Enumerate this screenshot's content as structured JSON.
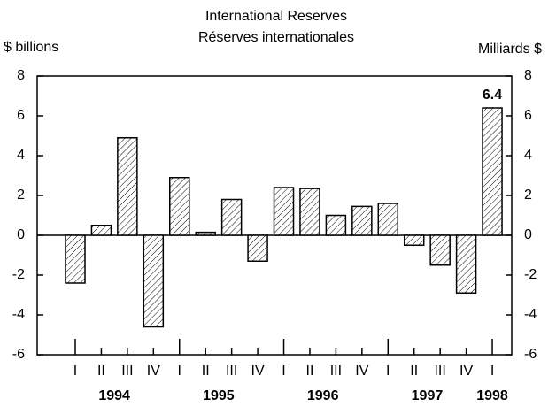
{
  "chart_data": {
    "type": "bar",
    "title": "International Reserves",
    "subtitle": "Réserves internationales",
    "y_label": "$ billions",
    "y2_label": "Milliards $",
    "categories": [
      "I",
      "II",
      "III",
      "IV",
      "I",
      "II",
      "III",
      "IV",
      "I",
      "II",
      "III",
      "IV",
      "I",
      "II",
      "III",
      "IV",
      "I"
    ],
    "years": [
      "1994",
      "1995",
      "1996",
      "1997",
      "1998"
    ],
    "values": [
      -2.4,
      0.5,
      4.9,
      -4.6,
      2.9,
      0.15,
      1.8,
      -1.3,
      2.4,
      2.35,
      1.0,
      1.45,
      1.6,
      -0.5,
      -1.5,
      -2.9,
      6.4
    ],
    "value_labels": [
      null,
      null,
      null,
      null,
      null,
      null,
      null,
      null,
      null,
      null,
      null,
      null,
      null,
      null,
      null,
      null,
      "6.4"
    ],
    "color": "#000000",
    "ylim": [
      -6,
      8
    ],
    "yticks": [
      -6,
      -4,
      -2,
      0,
      2,
      4,
      6,
      8
    ],
    "y2lim": [
      -6,
      8
    ],
    "y2ticks": [
      -6,
      -4,
      -2,
      0,
      2,
      4,
      6,
      8
    ]
  }
}
